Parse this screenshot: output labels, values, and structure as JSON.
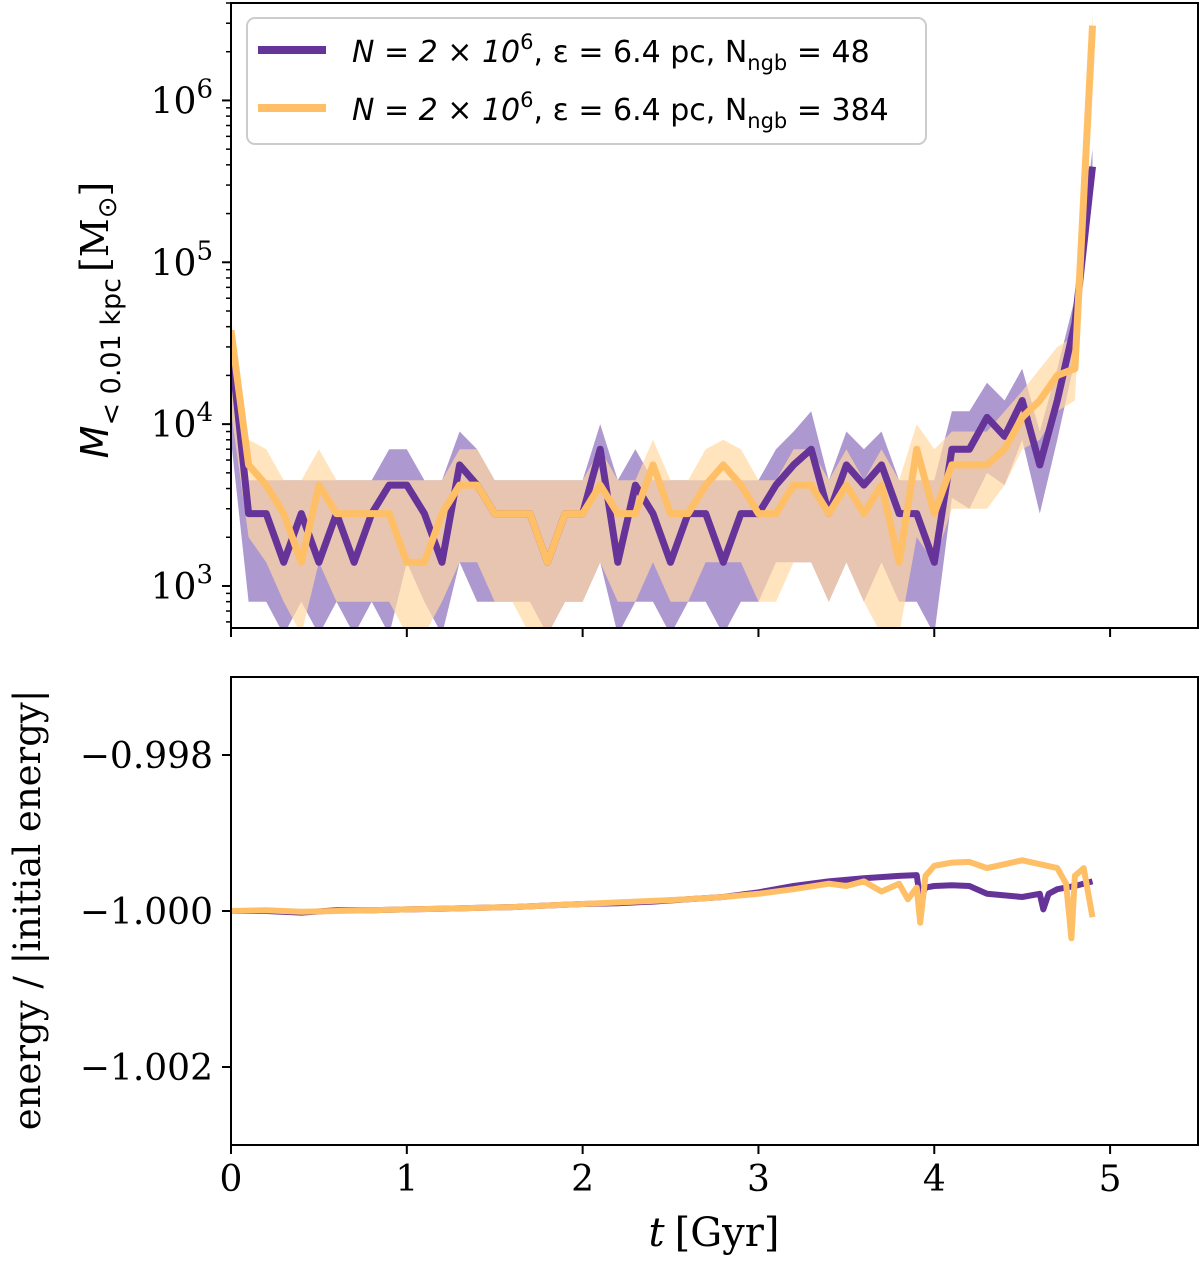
{
  "figure": {
    "shared_xlabel_var": "t",
    "shared_xlabel_unit": "[Gyr]"
  },
  "colors": {
    "purple": "#663399",
    "orange": "#ffbf66",
    "purple_band": "#9f86c8",
    "orange_band": "#ffd9a3",
    "overlap_band": "#d1a690"
  },
  "chart_data": [
    {
      "type": "line",
      "panel": "top",
      "yscale": "log",
      "ylabel_var": "M",
      "ylabel_sub": "< 0.01 kpc",
      "ylabel_unit": "[M",
      "ylabel_sun": "⊙",
      "ylabel_close": "]",
      "xlim": [
        0,
        5.5
      ],
      "ylim": [
        550,
        4000000
      ],
      "xticks": [
        0,
        1,
        2,
        3,
        4,
        5
      ],
      "yticks": [
        1000,
        10000,
        100000,
        1000000
      ],
      "ytick_labels": [
        {
          "base": "10",
          "exp": "3"
        },
        {
          "base": "10",
          "exp": "4"
        },
        {
          "base": "10",
          "exp": "5"
        },
        {
          "base": "10",
          "exp": "6"
        }
      ],
      "legend": {
        "location": "top-left",
        "entries": [
          {
            "series": "N48",
            "main": "N = 2 × 10",
            "exp": "6",
            "mid": ", ε = 6.4 pc, N",
            "sub": "ngb",
            "tail": " = 48"
          },
          {
            "series": "N384",
            "main": "N = 2 × 10",
            "exp": "6",
            "mid": ", ε = 6.4 pc, N",
            "sub": "ngb",
            "tail": " = 384"
          }
        ]
      },
      "series": [
        {
          "name": "N48",
          "label": "N = 2 × 10^6, ε = 6.4 pc, Nngb = 48",
          "color": "#663399",
          "x": [
            0.0,
            0.1,
            0.2,
            0.3,
            0.4,
            0.5,
            0.6,
            0.7,
            0.8,
            0.9,
            1.0,
            1.1,
            1.2,
            1.3,
            1.4,
            1.5,
            1.6,
            1.7,
            1.8,
            1.9,
            2.0,
            2.1,
            2.2,
            2.3,
            2.4,
            2.5,
            2.6,
            2.7,
            2.8,
            2.9,
            3.0,
            3.1,
            3.2,
            3.3,
            3.4,
            3.5,
            3.6,
            3.7,
            3.8,
            3.9,
            4.0,
            4.1,
            4.2,
            4.3,
            4.4,
            4.5,
            4.6,
            4.7,
            4.8,
            4.9
          ],
          "y": [
            30000,
            2800,
            2800,
            1400,
            2800,
            1400,
            2800,
            1400,
            2800,
            4200,
            4200,
            2800,
            1400,
            5600,
            4200,
            2800,
            2800,
            2800,
            1400,
            2800,
            2800,
            7000,
            1400,
            4200,
            2800,
            1400,
            2800,
            2800,
            1400,
            2800,
            2800,
            4200,
            5600,
            7000,
            2800,
            5600,
            4200,
            5600,
            2800,
            2800,
            1400,
            7000,
            7000,
            11000,
            8400,
            14000,
            5600,
            14000,
            42000,
            390000
          ],
          "band_low": [
            8000,
            800,
            800,
            500,
            800,
            500,
            800,
            500,
            800,
            500,
            1400,
            800,
            500,
            1400,
            800,
            800,
            800,
            800,
            500,
            800,
            800,
            1400,
            500,
            800,
            800,
            500,
            800,
            800,
            500,
            800,
            800,
            1400,
            1400,
            1400,
            800,
            1400,
            800,
            1400,
            800,
            800,
            500,
            3500,
            3000,
            5000,
            4200,
            8000,
            2800,
            8000,
            25000,
            250000
          ],
          "band_high": [
            35000,
            4500,
            4500,
            4500,
            4500,
            4500,
            4500,
            4500,
            4500,
            7000,
            7000,
            4500,
            4500,
            9000,
            7000,
            4500,
            4500,
            4500,
            4500,
            4500,
            4500,
            10000,
            4500,
            7000,
            4500,
            4500,
            4500,
            4500,
            4500,
            4500,
            4500,
            7000,
            9000,
            12000,
            4500,
            9000,
            7000,
            9000,
            4500,
            4500,
            4500,
            12000,
            12000,
            18000,
            14000,
            22000,
            9000,
            22000,
            60000,
            500000
          ]
        },
        {
          "name": "N384",
          "label": "N = 2 × 10^6, ε = 6.4 pc, Nngb = 384",
          "color": "#ffbf66",
          "x": [
            0.0,
            0.1,
            0.2,
            0.3,
            0.4,
            0.5,
            0.6,
            0.7,
            0.8,
            0.9,
            1.0,
            1.1,
            1.2,
            1.3,
            1.4,
            1.5,
            1.6,
            1.7,
            1.8,
            1.9,
            2.0,
            2.1,
            2.2,
            2.3,
            2.4,
            2.5,
            2.6,
            2.7,
            2.8,
            2.9,
            3.0,
            3.1,
            3.2,
            3.3,
            3.4,
            3.5,
            3.6,
            3.7,
            3.8,
            3.9,
            4.0,
            4.1,
            4.2,
            4.3,
            4.4,
            4.5,
            4.6,
            4.7,
            4.8,
            4.9
          ],
          "y": [
            38000,
            5600,
            4200,
            2800,
            1400,
            4200,
            2800,
            2800,
            2800,
            2800,
            1400,
            1400,
            2800,
            4200,
            4200,
            2800,
            2800,
            2800,
            1400,
            2800,
            2800,
            4200,
            2800,
            2800,
            5600,
            2800,
            2800,
            4200,
            5600,
            4200,
            2800,
            2800,
            4200,
            4200,
            2800,
            4200,
            2800,
            4200,
            1400,
            7000,
            2800,
            5600,
            5600,
            5600,
            7000,
            11000,
            14000,
            20000,
            22000,
            2900000
          ],
          "band_low": [
            12000,
            2000,
            1400,
            800,
            500,
            1400,
            800,
            800,
            800,
            800,
            500,
            500,
            800,
            1400,
            1400,
            800,
            800,
            500,
            500,
            800,
            800,
            1400,
            800,
            800,
            1400,
            800,
            800,
            1400,
            1400,
            1400,
            800,
            800,
            1400,
            1400,
            800,
            1400,
            800,
            500,
            500,
            2000,
            1400,
            3000,
            3000,
            3000,
            4200,
            7000,
            8000,
            12000,
            14000,
            1500000
          ],
          "band_high": [
            45000,
            8000,
            7000,
            4500,
            4500,
            7000,
            4500,
            4500,
            4500,
            4500,
            4500,
            4500,
            4500,
            7000,
            7000,
            4500,
            4500,
            4500,
            4500,
            4500,
            4500,
            7000,
            4500,
            4500,
            8000,
            4500,
            4500,
            7000,
            8000,
            7000,
            4500,
            4500,
            7000,
            7000,
            4500,
            7000,
            4500,
            7000,
            4500,
            10000,
            7000,
            9000,
            9000,
            9000,
            12000,
            16000,
            22000,
            30000,
            35000,
            3500000
          ]
        }
      ]
    },
    {
      "type": "line",
      "panel": "bottom",
      "ylabel": "energy / |initial energy|",
      "xlabel_var": "t",
      "xlabel_unit": "[Gyr]",
      "xlim": [
        0,
        5.5
      ],
      "ylim": [
        -1.003,
        -0.997
      ],
      "xticks": [
        0,
        1,
        2,
        3,
        4,
        5
      ],
      "xtick_labels": [
        "0",
        "1",
        "2",
        "3",
        "4",
        "5"
      ],
      "yticks": [
        -1.002,
        -1.0,
        -0.998
      ],
      "ytick_labels": [
        "−1.002",
        "−1.000",
        "−0.998"
      ],
      "series": [
        {
          "name": "N48",
          "color": "#663399",
          "x": [
            0.0,
            0.2,
            0.4,
            0.6,
            0.8,
            1.0,
            1.2,
            1.4,
            1.6,
            1.8,
            2.0,
            2.2,
            2.4,
            2.6,
            2.8,
            3.0,
            3.2,
            3.4,
            3.6,
            3.8,
            3.9,
            3.92,
            3.95,
            4.0,
            4.1,
            4.2,
            4.3,
            4.4,
            4.5,
            4.6,
            4.62,
            4.65,
            4.7,
            4.8,
            4.9
          ],
          "y": [
            -1.0,
            -1.0,
            -1.00002,
            -0.99999,
            -0.99999,
            -0.99998,
            -0.99997,
            -0.99996,
            -0.99995,
            -0.99993,
            -0.99991,
            -0.9999,
            -0.99988,
            -0.99985,
            -0.99982,
            -0.99976,
            -0.99968,
            -0.99962,
            -0.99958,
            -0.99955,
            -0.99954,
            -0.99985,
            -0.9997,
            -0.99968,
            -0.99967,
            -0.99968,
            -0.99978,
            -0.9998,
            -0.99982,
            -0.99978,
            -0.99998,
            -0.99978,
            -0.99972,
            -0.99968,
            -0.99962
          ]
        },
        {
          "name": "N384",
          "color": "#ffbf66",
          "x": [
            0.0,
            0.2,
            0.4,
            0.6,
            0.8,
            1.0,
            1.2,
            1.4,
            1.6,
            1.8,
            2.0,
            2.2,
            2.4,
            2.6,
            2.8,
            3.0,
            3.2,
            3.4,
            3.5,
            3.6,
            3.7,
            3.8,
            3.85,
            3.9,
            3.92,
            3.95,
            4.0,
            4.1,
            4.2,
            4.3,
            4.4,
            4.5,
            4.6,
            4.7,
            4.75,
            4.78,
            4.8,
            4.85,
            4.9
          ],
          "y": [
            -1.0,
            -0.99999,
            -1.00001,
            -1.0,
            -0.99999,
            -0.99998,
            -0.99997,
            -0.99996,
            -0.99995,
            -0.99993,
            -0.99991,
            -0.99989,
            -0.99987,
            -0.99985,
            -0.99982,
            -0.99978,
            -0.99972,
            -0.99965,
            -0.99968,
            -0.99962,
            -0.99975,
            -0.99965,
            -0.99985,
            -0.9997,
            -1.00015,
            -0.99955,
            -0.99942,
            -0.99938,
            -0.99937,
            -0.99945,
            -0.9994,
            -0.99935,
            -0.9994,
            -0.99945,
            -0.99965,
            -1.00035,
            -0.99955,
            -0.99945,
            -1.00008
          ]
        }
      ]
    }
  ]
}
